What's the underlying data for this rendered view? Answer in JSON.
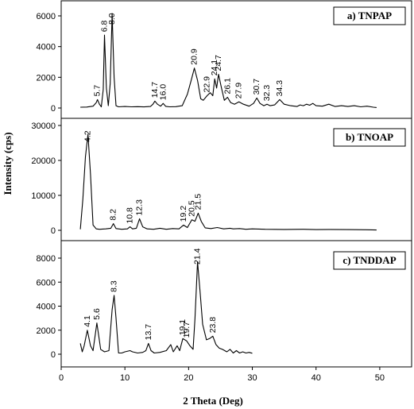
{
  "chart_data": {
    "type": "line",
    "xlabel": "2 Theta (Deg)",
    "ylabel": "Intensity (cps)",
    "xlim": [
      0,
      55
    ],
    "x_ticks": [
      0,
      10,
      20,
      30,
      40,
      50
    ],
    "x_tick_labels": [
      "0",
      "10",
      "20",
      "30",
      "40",
      "50"
    ],
    "grid": false,
    "panels": [
      {
        "label": "a) TNPAP",
        "ylim": [
          0,
          6500
        ],
        "y_ticks": [
          0,
          2000,
          4000,
          6000
        ],
        "y_tick_labels": [
          "0",
          "2000",
          "4000",
          "6000"
        ],
        "peaks": [
          {
            "x": 5.7,
            "label": "5.7"
          },
          {
            "x": 6.8,
            "label": "6.8"
          },
          {
            "x": 8.0,
            "label": "8.0"
          },
          {
            "x": 14.7,
            "label": "14.7"
          },
          {
            "x": 16.0,
            "label": "16.0"
          },
          {
            "x": 20.9,
            "label": "20.9"
          },
          {
            "x": 22.9,
            "label": "22.9"
          },
          {
            "x": 24.1,
            "label": "24.1"
          },
          {
            "x": 24.7,
            "label": "24.7"
          },
          {
            "x": 26.1,
            "label": "26.1"
          },
          {
            "x": 27.9,
            "label": "27.9"
          },
          {
            "x": 30.7,
            "label": "30.7"
          },
          {
            "x": 32.3,
            "label": "32.3"
          },
          {
            "x": 34.3,
            "label": "34.3"
          }
        ],
        "series": [
          {
            "x": [
              3,
              4,
              5,
              5.5,
              5.7,
              6,
              6.3,
              6.6,
              6.8,
              7.1,
              7.4,
              7.7,
              8.0,
              8.3,
              8.6,
              9,
              10,
              11,
              12,
              13,
              14,
              14.4,
              14.7,
              15.1,
              15.6,
              16.0,
              16.4,
              17,
              18,
              19,
              19.8,
              20.4,
              20.9,
              21.4,
              21.9,
              22.3,
              22.9,
              23.4,
              23.8,
              24.1,
              24.4,
              24.7,
              25.1,
              25.6,
              26.1,
              26.6,
              27.2,
              27.9,
              28.6,
              29.5,
              30.2,
              30.7,
              31.2,
              31.8,
              32.3,
              32.8,
              33.5,
              34.3,
              35,
              36,
              37,
              37.5,
              38,
              38.5,
              39,
              39.5,
              40,
              41,
              42,
              43,
              44,
              45,
              46,
              47,
              48,
              49,
              49.5
            ],
            "y": [
              50,
              60,
              120,
              350,
              550,
              250,
              80,
              1200,
              4750,
              1300,
              150,
              1600,
              6150,
              2000,
              150,
              80,
              100,
              80,
              90,
              70,
              100,
              250,
              450,
              250,
              120,
              300,
              110,
              80,
              90,
              150,
              900,
              1800,
              2600,
              1800,
              600,
              500,
              800,
              1000,
              800,
              1900,
              1300,
              2200,
              1400,
              500,
              700,
              350,
              250,
              400,
              250,
              120,
              300,
              650,
              300,
              150,
              250,
              150,
              200,
              550,
              250,
              150,
              100,
              200,
              150,
              250,
              180,
              300,
              150,
              120,
              250,
              100,
              150,
              100,
              150,
              80,
              120,
              50,
              30
            ]
          }
        ]
      },
      {
        "label": "b) TNOAP",
        "ylim": [
          -1000,
          30500
        ],
        "y_ticks": [
          0,
          10000,
          20000,
          30000
        ],
        "y_tick_labels": [
          "0",
          "10000",
          "20000",
          "30000"
        ],
        "peaks": [
          {
            "x": 4.2,
            "label": "4.2"
          },
          {
            "x": 8.2,
            "label": "8.2"
          },
          {
            "x": 10.8,
            "label": "10.8"
          },
          {
            "x": 12.3,
            "label": "12.3"
          },
          {
            "x": 19.2,
            "label": "19.2"
          },
          {
            "x": 20.5,
            "label": "20.5"
          },
          {
            "x": 21.5,
            "label": "21.5"
          }
        ],
        "series": [
          {
            "x": [
              3,
              3.4,
              3.8,
              4.2,
              4.6,
              5.0,
              5.5,
              6,
              7,
              7.8,
              8.2,
              8.6,
              9.5,
              10.4,
              10.8,
              11.2,
              11.8,
              12.3,
              12.8,
              13.5,
              14.5,
              15.5,
              16.5,
              17.5,
              18.5,
              19.2,
              19.8,
              20.5,
              21.0,
              21.5,
              22.0,
              22.6,
              23.5,
              24.5,
              25.5,
              26.5,
              27,
              28,
              29,
              30,
              32,
              35,
              38,
              40,
              42,
              45,
              48,
              49.5
            ],
            "y": [
              300,
              9000,
              21000,
              27500,
              16000,
              1500,
              400,
              300,
              400,
              600,
              1900,
              500,
              300,
              400,
              1000,
              400,
              600,
              3300,
              1000,
              400,
              300,
              600,
              300,
              500,
              400,
              1500,
              800,
              3000,
              2600,
              4900,
              2500,
              700,
              500,
              800,
              400,
              600,
              400,
              500,
              300,
              400,
              300,
              250,
              300,
              200,
              250,
              200,
              150,
              100
            ]
          }
        ]
      },
      {
        "label": "c) TNDDAP",
        "ylim": [
          -300,
          8700
        ],
        "y_ticks": [
          0,
          2000,
          4000,
          6000,
          8000
        ],
        "y_tick_labels": [
          "0",
          "2000",
          "4000",
          "6000",
          "8000"
        ],
        "peaks": [
          {
            "x": 4.1,
            "label": "4.1"
          },
          {
            "x": 5.6,
            "label": "5.6"
          },
          {
            "x": 8.3,
            "label": "8.3"
          },
          {
            "x": 13.7,
            "label": "13.7"
          },
          {
            "x": 19.1,
            "label": "19.1"
          },
          {
            "x": 19.7,
            "label": "19.7"
          },
          {
            "x": 21.4,
            "label": "21.4"
          },
          {
            "x": 23.8,
            "label": "23.8"
          }
        ],
        "series": [
          {
            "x": [
              3,
              3.3,
              3.6,
              4.1,
              4.6,
              5.0,
              5.6,
              6.2,
              6.8,
              7.5,
              8.0,
              8.3,
              8.6,
              9.0,
              9.5,
              10,
              10.8,
              11.2,
              12,
              12.8,
              13.3,
              13.7,
              14.1,
              14.6,
              15.5,
              16.5,
              17.2,
              17.6,
              18.2,
              18.6,
              19.1,
              19.7,
              20.2,
              20.7,
              21.0,
              21.4,
              21.8,
              22.2,
              22.8,
              23.3,
              23.8,
              24.3,
              24.8,
              25.3,
              26,
              26.5,
              27,
              27.5,
              28,
              28.5,
              29,
              29.5,
              30
            ],
            "y": [
              900,
              200,
              700,
              2000,
              700,
              300,
              2600,
              400,
              200,
              300,
              3700,
              4900,
              3000,
              100,
              100,
              200,
              300,
              200,
              100,
              150,
              300,
              900,
              300,
              100,
              150,
              300,
              800,
              200,
              700,
              300,
              1300,
              1100,
              700,
              400,
              3000,
              7700,
              5200,
              2500,
              1200,
              1300,
              1500,
              800,
              500,
              400,
              200,
              400,
              100,
              300,
              100,
              200,
              100,
              150,
              80
            ]
          }
        ]
      }
    ]
  }
}
